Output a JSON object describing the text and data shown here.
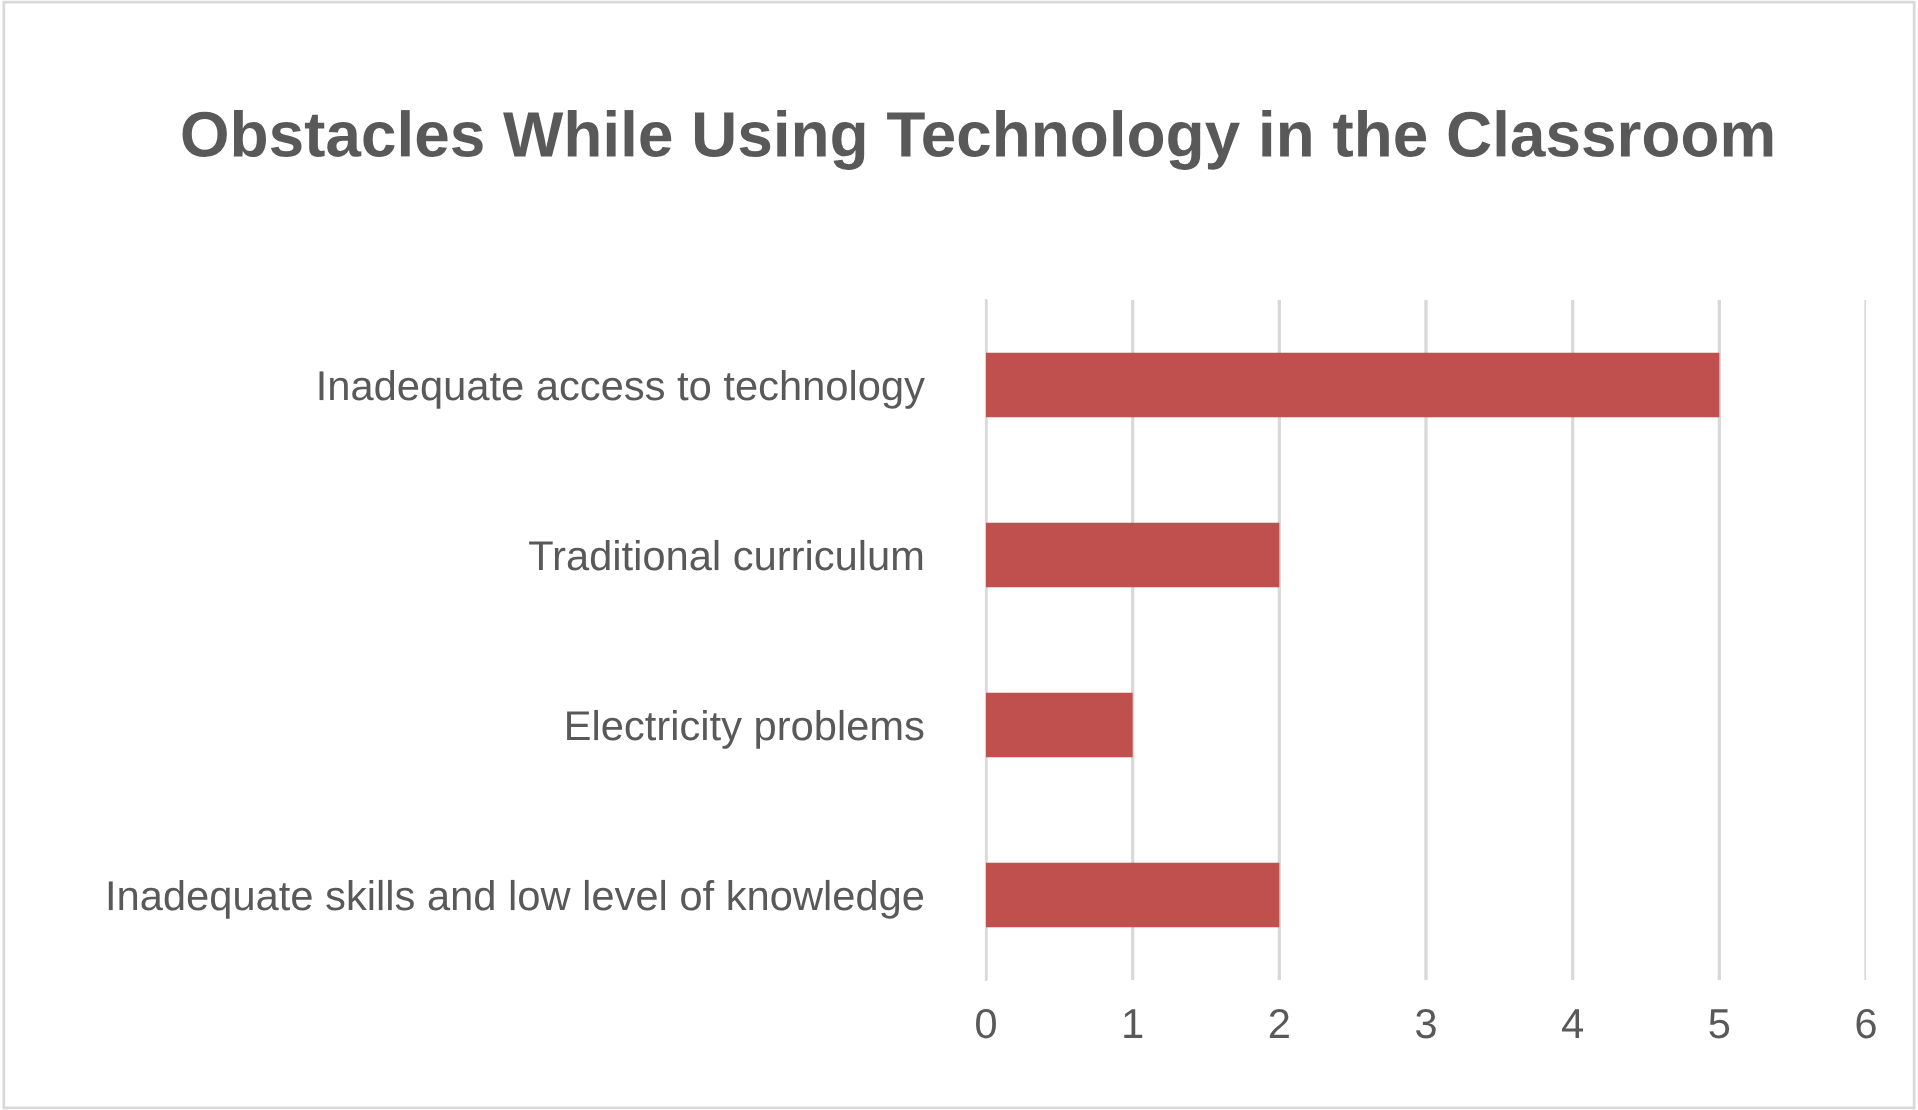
{
  "chart_data": {
    "type": "bar",
    "orientation": "horizontal",
    "title": "Obstacles While Using Technology in the Classroom",
    "categories": [
      "Inadequate access to technology",
      "Traditional curriculum",
      "Electricity problems",
      "Inadequate skills and low level of knowledge"
    ],
    "values": [
      5,
      2,
      1,
      2
    ],
    "color": "#c0504d",
    "xlim": [
      0,
      6
    ],
    "xticks": [
      0,
      1,
      2,
      3,
      4,
      5,
      6
    ],
    "grid": "x",
    "legend": false
  }
}
